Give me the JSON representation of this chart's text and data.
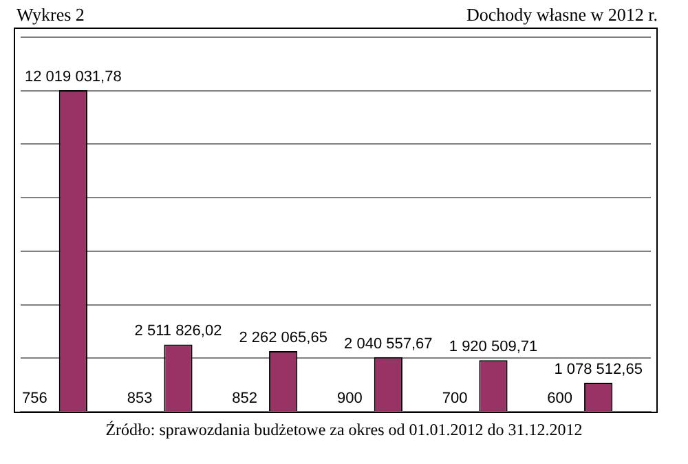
{
  "chart_data": {
    "type": "bar",
    "title": "Dochody własne w 2012 r.",
    "annotations": [
      "Wykres 2",
      "Źródło: sprawozdania budżetowe za okres od 01.01.2012 do 31.12.2012"
    ],
    "categories": [
      "756",
      "853",
      "852",
      "900",
      "700",
      "600"
    ],
    "values": [
      12019031.78,
      2511826.02,
      2262065.65,
      2040557.67,
      1920509.71,
      1078512.65
    ],
    "value_labels": [
      "12 019 031,78",
      "2 511 826,02",
      "2 262 065,65",
      "2 040 557,67",
      "1 920 509,71",
      "1 078 512,65"
    ],
    "color": "#993366",
    "ylim": [
      0,
      14000000
    ],
    "yticks": [
      {
        "value": 0,
        "label": null
      },
      {
        "value": 2000000,
        "label": null
      },
      {
        "value": 4000000,
        "label": null
      },
      {
        "value": 6000000,
        "label": null
      },
      {
        "value": 8000000,
        "label": null
      },
      {
        "value": 10000000,
        "label": null
      },
      {
        "value": 12000000,
        "label": null
      },
      {
        "value": 14000000,
        "label": null
      }
    ],
    "grid": "y",
    "tick_labels": "x"
  }
}
